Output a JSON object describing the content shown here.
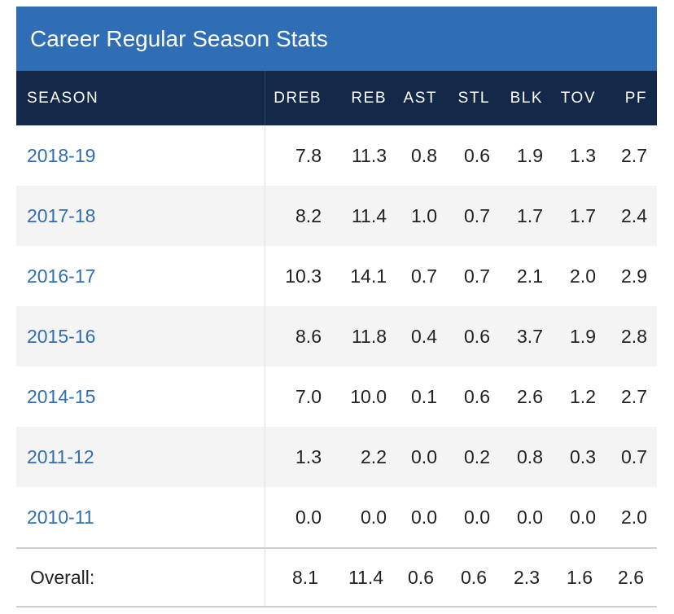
{
  "title": "Career Regular Season Stats",
  "columns": [
    "SEASON",
    "DREB",
    "REB",
    "AST",
    "STL",
    "BLK",
    "TOV",
    "PF"
  ],
  "rows": [
    {
      "season": "2018-19",
      "stats": [
        "7.8",
        "11.3",
        "0.8",
        "0.6",
        "1.9",
        "1.3",
        "2.7"
      ]
    },
    {
      "season": "2017-18",
      "stats": [
        "8.2",
        "11.4",
        "1.0",
        "0.7",
        "1.7",
        "1.7",
        "2.4"
      ]
    },
    {
      "season": "2016-17",
      "stats": [
        "10.3",
        "14.1",
        "0.7",
        "0.7",
        "2.1",
        "2.0",
        "2.9"
      ]
    },
    {
      "season": "2015-16",
      "stats": [
        "8.6",
        "11.8",
        "0.4",
        "0.6",
        "3.7",
        "1.9",
        "2.8"
      ]
    },
    {
      "season": "2014-15",
      "stats": [
        "7.0",
        "10.0",
        "0.1",
        "0.6",
        "2.6",
        "1.2",
        "2.7"
      ]
    },
    {
      "season": "2011-12",
      "stats": [
        "1.3",
        "2.2",
        "0.0",
        "0.2",
        "0.8",
        "0.3",
        "0.7"
      ]
    },
    {
      "season": "2010-11",
      "stats": [
        "0.0",
        "0.0",
        "0.0",
        "0.0",
        "0.0",
        "0.0",
        "2.0"
      ]
    }
  ],
  "overall": {
    "label": "Overall:",
    "stats": [
      "8.1",
      "11.4",
      "0.6",
      "0.6",
      "2.3",
      "1.6",
      "2.6"
    ]
  },
  "colors": {
    "title_bar": "#2f6db5",
    "header_bar": "#14294a",
    "link": "#2f6db5",
    "stripe": "#f4f4f4"
  }
}
